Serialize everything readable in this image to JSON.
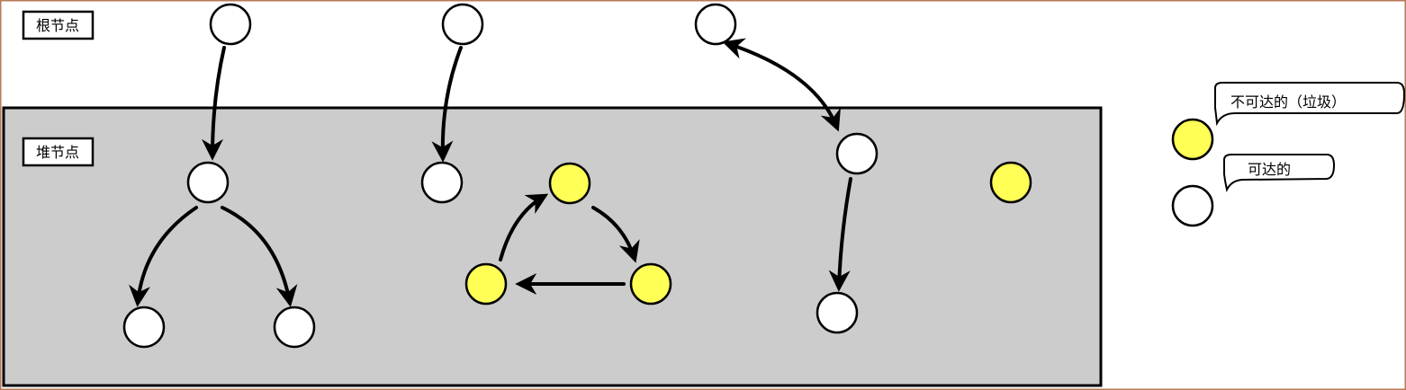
{
  "labels": {
    "root": "根节点",
    "heap": "堆节点"
  },
  "legend": {
    "unreachable": "不可达的（垃圾）",
    "reachable": "可达的"
  },
  "colors": {
    "frame": "#b97a57",
    "heap_fill": "#cccccc",
    "reachable_node": "#ffffff",
    "unreachable_node": "#ffff55",
    "stroke": "#000000"
  }
}
